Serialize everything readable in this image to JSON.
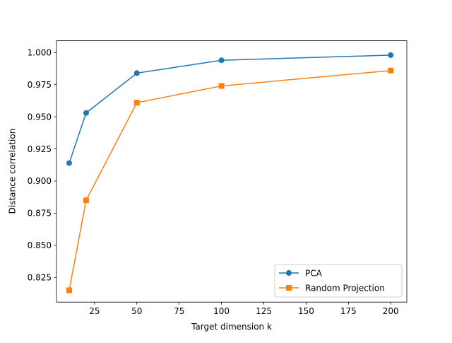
{
  "chart_data": {
    "type": "line",
    "title": "",
    "xlabel": "Target dimension k",
    "ylabel": "Distance correlation",
    "xlim": [
      2.5,
      209.5
    ],
    "ylim": [
      0.8058,
      1.0092
    ],
    "xticks": [
      25,
      50,
      75,
      100,
      125,
      150,
      175,
      200
    ],
    "yticks": [
      0.825,
      0.85,
      0.875,
      0.9,
      0.925,
      0.95,
      0.975,
      1.0
    ],
    "xtick_labels": [
      "25",
      "50",
      "75",
      "100",
      "125",
      "150",
      "175",
      "200"
    ],
    "ytick_labels": [
      "0.825",
      "0.850",
      "0.875",
      "0.900",
      "0.925",
      "0.950",
      "0.975",
      "1.000"
    ],
    "grid": false,
    "legend_position": "lower-right",
    "series": [
      {
        "name": "PCA",
        "color": "#1f77b4",
        "marker": "circle",
        "x": [
          10,
          20,
          50,
          100,
          200
        ],
        "y": [
          0.914,
          0.953,
          0.984,
          0.994,
          0.998
        ]
      },
      {
        "name": "Random Projection",
        "color": "#ff7f0e",
        "marker": "square",
        "x": [
          10,
          20,
          50,
          100,
          200
        ],
        "y": [
          0.815,
          0.885,
          0.961,
          0.974,
          0.986
        ]
      }
    ]
  }
}
